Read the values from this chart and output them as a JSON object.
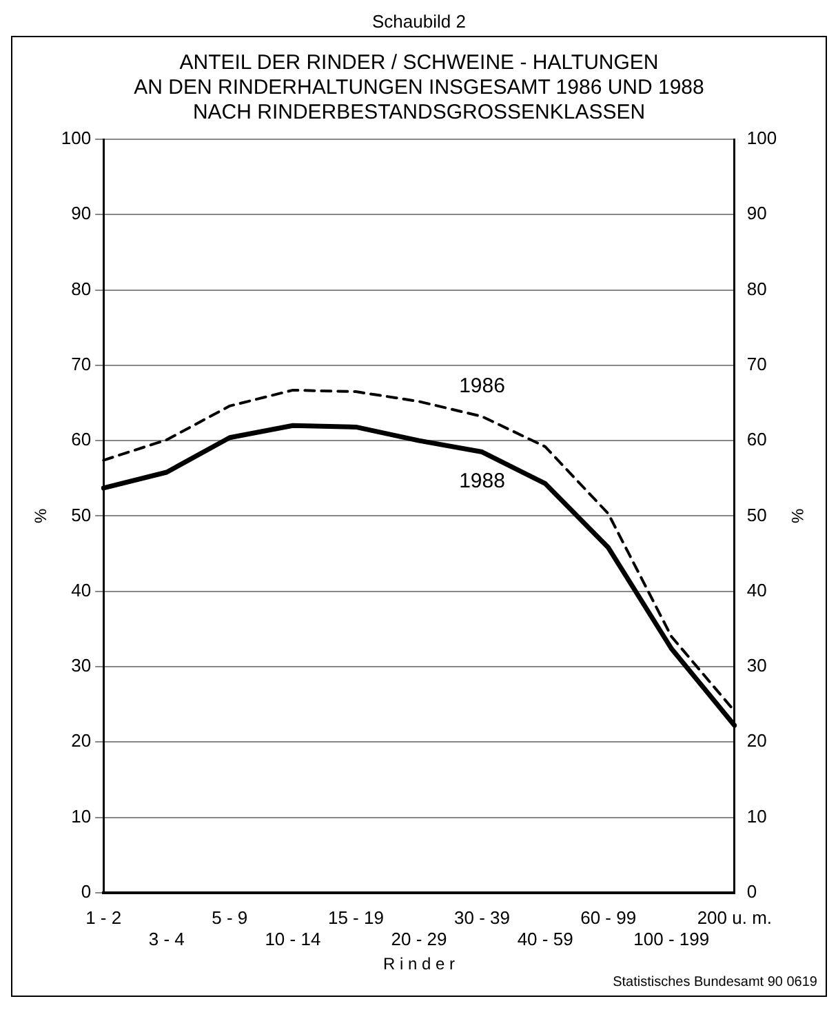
{
  "chart_data": {
    "type": "line",
    "title": "ANTEIL DER RINDER / SCHWEINE - HALTUNGEN\nAN DEN RINDERHALTUNGEN INSGESAMT 1986 UND 1988\nNACH RINDERBESTANDSGROSSENKLASSEN",
    "xlabel": "R i n d e r",
    "ylabel": "%",
    "y2label": "%",
    "annotations": [
      "Schaubild 2",
      "Statistisches Bundesamt 90 0619"
    ],
    "categories": [
      "1 - 2",
      "3 - 4",
      "5 - 9",
      "10 - 14",
      "15 - 19",
      "20 - 29",
      "30 - 39",
      "40 - 59",
      "60 - 99",
      "100 - 199",
      "200 u. m."
    ],
    "series": [
      {
        "name": "1986",
        "color": "#000000",
        "line_style": "dashed",
        "values": [
          57.4,
          60.1,
          64.6,
          66.7,
          66.5,
          65.2,
          63.2,
          59.2,
          50.3,
          34,
          24.1
        ]
      },
      {
        "name": "1988",
        "color": "#000000",
        "line_style": "solid",
        "values": [
          53.7,
          55.8,
          60.4,
          62,
          61.8,
          60,
          58.5,
          54.3,
          45.8,
          32.4,
          22.2
        ]
      }
    ],
    "ylim": [
      0,
      100
    ],
    "yticks": [
      0,
      10,
      20,
      30,
      40,
      50,
      60,
      70,
      80,
      90,
      100
    ],
    "y2lim": [
      0,
      100
    ],
    "y2ticks": [
      0,
      10,
      20,
      30,
      40,
      50,
      60,
      70,
      80,
      90,
      100
    ],
    "grid": "y",
    "legend": false,
    "marker": "none"
  }
}
